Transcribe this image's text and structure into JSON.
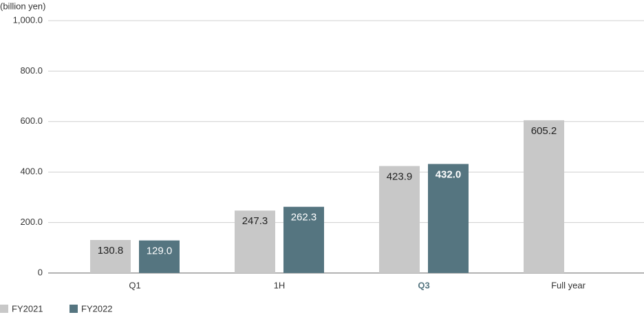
{
  "chart_data": {
    "type": "bar",
    "unit_label": "(billion yen)",
    "categories": [
      "Q1",
      "1H",
      "Q3",
      "Full year"
    ],
    "series": [
      {
        "name": "FY2021",
        "color": "#c8c8c8",
        "label_color": "#222222",
        "values": [
          130.8,
          247.3,
          423.9,
          605.2
        ],
        "value_labels": [
          "130.8",
          "247.3",
          "423.9",
          "605.2"
        ]
      },
      {
        "name": "FY2022",
        "color": "#557580",
        "label_color": "#ffffff",
        "values": [
          129.0,
          262.3,
          432.0,
          null
        ],
        "value_labels": [
          "129.0",
          "262.3",
          "432.0",
          null
        ]
      }
    ],
    "highlight_index": 2,
    "highlight_color": "#557580",
    "ylim": [
      0,
      1000
    ],
    "yticks": [
      0,
      {
        "value": 200,
        "label": "200.0"
      },
      {
        "value": 400,
        "label": "400.0"
      },
      {
        "value": 600,
        "label": "600.0"
      },
      {
        "value": 800,
        "label": "800.0"
      },
      {
        "value": 1000,
        "label": "1,000.0"
      }
    ],
    "grid": true
  }
}
